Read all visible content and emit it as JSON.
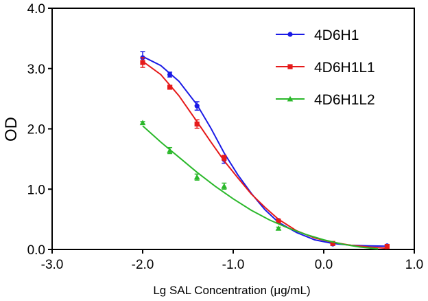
{
  "chart_data": {
    "type": "scatter",
    "title": "",
    "xlabel": "Lg SAL Concentration (μg/mL)",
    "ylabel": "OD",
    "xlim": [
      -3.0,
      1.0
    ],
    "ylim": [
      0.0,
      4.0
    ],
    "xticks": [
      -3.0,
      -2.0,
      -1.0,
      0.0,
      1.0
    ],
    "xtick_labels": [
      "-3.0",
      "-2.0",
      "-1.0",
      "0.0",
      "1.0"
    ],
    "yticks": [
      0.0,
      1.0,
      2.0,
      3.0,
      4.0
    ],
    "ytick_labels": [
      "0.0",
      "1.0",
      "2.0",
      "3.0",
      "4.0"
    ],
    "grid": false,
    "legend_position": "top-right",
    "series": [
      {
        "name": "4D6H1",
        "color": "#1a1ae6",
        "marker": "circle",
        "x": [
          -2.0,
          -1.7,
          -1.4,
          -1.1,
          -0.5,
          0.1,
          0.7
        ],
        "y": [
          3.18,
          2.9,
          2.38,
          1.49,
          0.48,
          0.09,
          0.06
        ],
        "err": [
          0.1,
          0.04,
          0.07,
          0.06,
          0.02,
          0.02,
          0.02
        ],
        "fit": [
          [
            -2.0,
            3.2
          ],
          [
            -1.8,
            3.05
          ],
          [
            -1.6,
            2.79
          ],
          [
            -1.4,
            2.4
          ],
          [
            -1.25,
            2.02
          ],
          [
            -1.1,
            1.6
          ],
          [
            -0.95,
            1.24
          ],
          [
            -0.8,
            0.93
          ],
          [
            -0.65,
            0.66
          ],
          [
            -0.5,
            0.45
          ],
          [
            -0.3,
            0.28
          ],
          [
            -0.1,
            0.16
          ],
          [
            0.1,
            0.1
          ],
          [
            0.3,
            0.07
          ],
          [
            0.5,
            0.06
          ],
          [
            0.7,
            0.055
          ]
        ]
      },
      {
        "name": "4D6H1L1",
        "color": "#e61a1a",
        "marker": "square",
        "x": [
          -2.0,
          -1.7,
          -1.4,
          -1.1,
          -0.5,
          0.1,
          0.7
        ],
        "y": [
          3.1,
          2.69,
          2.08,
          1.52,
          0.47,
          0.1,
          0.05
        ],
        "err": [
          0.08,
          0.03,
          0.07,
          0.04,
          0.02,
          0.02,
          0.02
        ],
        "fit": [
          [
            -2.0,
            3.12
          ],
          [
            -1.8,
            2.9
          ],
          [
            -1.6,
            2.55
          ],
          [
            -1.4,
            2.12
          ],
          [
            -1.25,
            1.79
          ],
          [
            -1.1,
            1.47
          ],
          [
            -0.95,
            1.19
          ],
          [
            -0.8,
            0.92
          ],
          [
            -0.65,
            0.7
          ],
          [
            -0.5,
            0.5
          ],
          [
            -0.3,
            0.31
          ],
          [
            -0.1,
            0.19
          ],
          [
            0.1,
            0.12
          ],
          [
            0.3,
            0.07
          ],
          [
            0.5,
            0.04
          ],
          [
            0.7,
            0.02
          ]
        ]
      },
      {
        "name": "4D6H1L2",
        "color": "#2ab82a",
        "marker": "triangle",
        "x": [
          -2.0,
          -1.7,
          -1.4,
          -1.1,
          -0.5
        ],
        "y": [
          2.1,
          1.64,
          1.2,
          1.05,
          0.35
        ],
        "err": [
          0.02,
          0.05,
          0.05,
          0.05,
          0.02
        ],
        "fit": [
          [
            -2.0,
            2.05
          ],
          [
            -1.8,
            1.78
          ],
          [
            -1.6,
            1.53
          ],
          [
            -1.4,
            1.28
          ],
          [
            -1.2,
            1.05
          ],
          [
            -1.0,
            0.84
          ],
          [
            -0.8,
            0.65
          ],
          [
            -0.6,
            0.49
          ],
          [
            -0.4,
            0.36
          ],
          [
            -0.2,
            0.25
          ],
          [
            0.0,
            0.16
          ],
          [
            0.2,
            0.09
          ],
          [
            0.4,
            0.04
          ],
          [
            0.6,
            0.01
          ]
        ]
      }
    ]
  }
}
